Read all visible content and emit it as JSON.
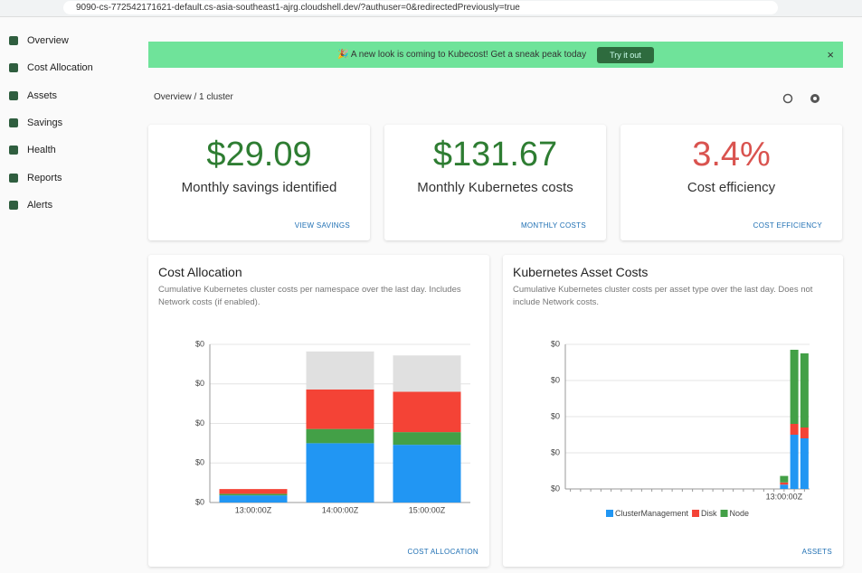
{
  "browser": {
    "url": "9090-cs-772542171621-default.cs-asia-southeast1-ajrg.cloudshell.dev/?authuser=0&redirectedPreviously=true"
  },
  "nav": [
    "Overview",
    "Cost Allocation",
    "Assets",
    "Savings",
    "Health",
    "Reports",
    "Alerts"
  ],
  "banner": {
    "text": "🎉 A new look is coming to Kubecost! Get a sneak peak today",
    "button": "Try it out",
    "close": "×"
  },
  "breadcrumb": "Overview / 1 cluster",
  "cards": [
    {
      "value": "$29.09",
      "label": "Monthly savings identified",
      "link": "VIEW SAVINGS",
      "color": "#2e7d32"
    },
    {
      "value": "$131.67",
      "label": "Monthly Kubernetes costs",
      "link": "MONTHLY COSTS",
      "color": "#2e7d32"
    },
    {
      "value": "3.4%",
      "label": "Cost efficiency",
      "link": "COST EFFICIENCY",
      "color": "#d9534f"
    }
  ],
  "cost_allocation": {
    "title": "Cost Allocation",
    "description": "Cumulative Kubernetes cluster costs per namespace over the last day. Includes Network costs (if enabled).",
    "link": "COST ALLOCATION",
    "chart": {
      "type": "bar",
      "stacked": true,
      "grid": true,
      "categories": [
        "13:00:00Z",
        "14:00:00Z",
        "15:00:00Z"
      ],
      "series": [
        {
          "color": "#2196f3",
          "values": [
            0.009,
            0.075,
            0.073
          ]
        },
        {
          "color": "#43a047",
          "values": [
            0.002,
            0.018,
            0.016
          ]
        },
        {
          "color": "#f44336",
          "values": [
            0.006,
            0.05,
            0.051
          ]
        },
        {
          "color": "#e0e0e0",
          "values": [
            0,
            0.048,
            0.046
          ]
        }
      ],
      "ylim": [
        0,
        0.2
      ],
      "yticks": [
        {
          "value": 0,
          "label": "$0"
        },
        {
          "value": 0.05,
          "label": "$0"
        },
        {
          "value": 0.1,
          "label": "$0"
        },
        {
          "value": 0.15,
          "label": "$0"
        },
        {
          "value": 0.2,
          "label": "$0"
        }
      ]
    }
  },
  "asset_costs": {
    "title": "Kubernetes Asset Costs",
    "description": "Cumulative Kubernetes cluster costs per asset type over the last day. Does not include Network costs.",
    "link": "ASSETS",
    "chart": {
      "type": "bar",
      "stacked": true,
      "grid": true,
      "legend": "bottom",
      "categories": [
        null,
        null,
        null,
        null,
        null,
        null,
        null,
        null,
        null,
        null,
        null,
        null,
        null,
        null,
        null,
        null,
        null,
        null,
        null,
        null,
        null,
        "13:00:00Z",
        null,
        null
      ],
      "series": [
        {
          "name": "ClusterManagement",
          "color": "#2196f3",
          "values": [
            null,
            null,
            null,
            null,
            null,
            null,
            null,
            null,
            null,
            null,
            null,
            null,
            null,
            null,
            null,
            null,
            null,
            null,
            null,
            null,
            null,
            0.006,
            0.075,
            0.07
          ]
        },
        {
          "name": "Disk",
          "color": "#f44336",
          "values": [
            null,
            null,
            null,
            null,
            null,
            null,
            null,
            null,
            null,
            null,
            null,
            null,
            null,
            null,
            null,
            null,
            null,
            null,
            null,
            null,
            null,
            0.003,
            0.015,
            0.015
          ]
        },
        {
          "name": "Node",
          "color": "#43a047",
          "values": [
            null,
            null,
            null,
            null,
            null,
            null,
            null,
            null,
            null,
            null,
            null,
            null,
            null,
            null,
            null,
            null,
            null,
            null,
            null,
            null,
            null,
            0.009,
            0.1025,
            0.1025
          ]
        }
      ],
      "ylim": [
        0,
        0.2
      ],
      "yticks": [
        {
          "value": 0,
          "label": "$0"
        },
        {
          "value": 0.05,
          "label": "$0"
        },
        {
          "value": 0.1,
          "label": "$0"
        },
        {
          "value": 0.15,
          "label": "$0"
        },
        {
          "value": 0.2,
          "label": "$0"
        }
      ]
    }
  }
}
